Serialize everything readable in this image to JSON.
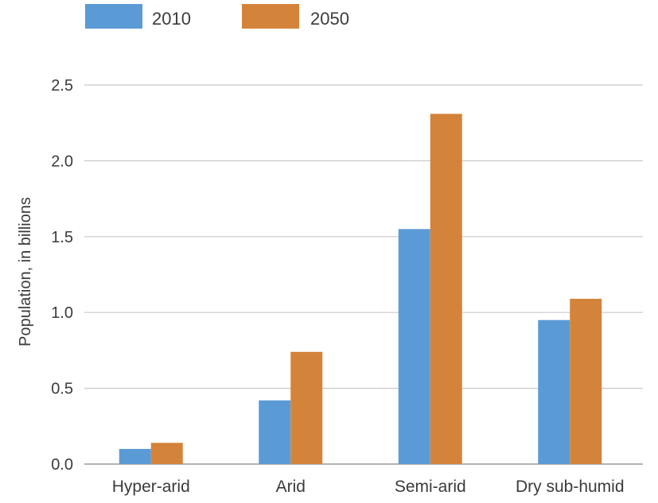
{
  "chart_data": {
    "type": "bar",
    "title": "",
    "xlabel": "",
    "ylabel": "Population, in billions",
    "categories": [
      "Hyper-arid",
      "Arid",
      "Semi-arid",
      "Dry sub-humid"
    ],
    "series": [
      {
        "name": "2010",
        "color": "#5b9bd5",
        "values": [
          0.1,
          0.42,
          1.55,
          0.95
        ]
      },
      {
        "name": "2050",
        "color": "#d4833a",
        "values": [
          0.14,
          0.74,
          2.31,
          1.09
        ]
      }
    ],
    "ylim": [
      0,
      2.5
    ],
    "yticks": [
      "0.0",
      "0.5",
      "1.0",
      "1.5",
      "2.0",
      "2.5"
    ],
    "grid": true,
    "legend_position": "top-left"
  }
}
